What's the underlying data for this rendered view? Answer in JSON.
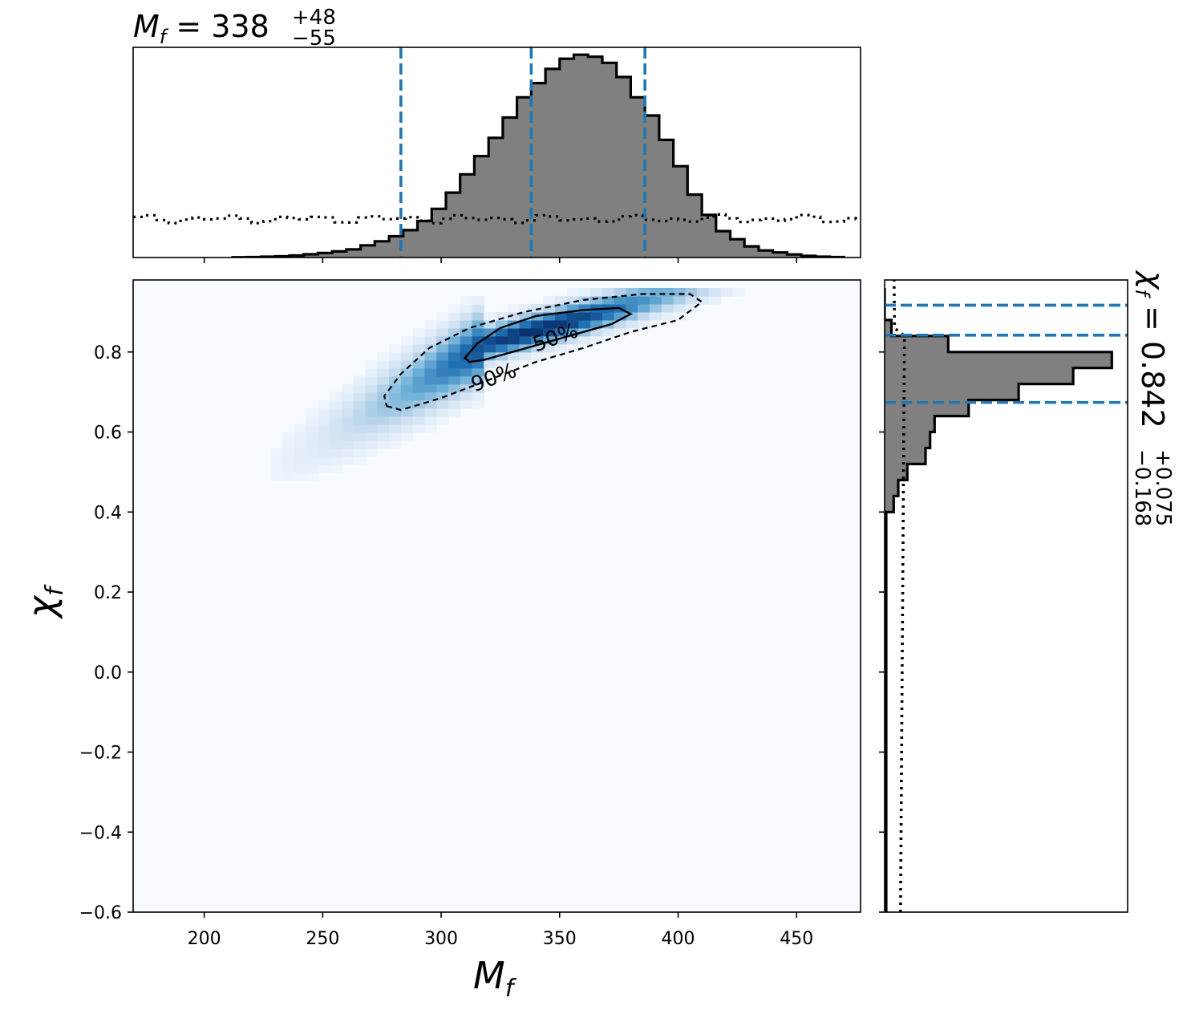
{
  "chart_data": {
    "type": "corner",
    "top_title": {
      "name": "M",
      "sub": "f",
      "median": "338",
      "plus": "+48",
      "minus": "−55"
    },
    "right_title": {
      "name": "χ",
      "sub": "f",
      "median": "0.842",
      "plus": "+0.075",
      "minus": "−0.168"
    },
    "xlabel": {
      "name": "M",
      "sub": "f"
    },
    "ylabel": {
      "name": "χ",
      "sub": "f"
    },
    "xlim": [
      170,
      477
    ],
    "ylim": [
      -0.6,
      0.98
    ],
    "xticks": [
      200,
      250,
      300,
      350,
      400,
      450
    ],
    "xtick_labels": [
      "200",
      "250",
      "300",
      "350",
      "400",
      "450"
    ],
    "yticks": [
      -0.6,
      -0.4,
      -0.2,
      0.0,
      0.2,
      0.4,
      0.6,
      0.8
    ],
    "ytick_labels": [
      "−0.6",
      "−0.4",
      "−0.2",
      "0.0",
      "0.2",
      "0.4",
      "0.6",
      "0.8"
    ],
    "mf_histogram": {
      "bin_start": 212,
      "bin_width": 6,
      "density": [
        0.001,
        0.002,
        0.004,
        0.006,
        0.01,
        0.016,
        0.022,
        0.03,
        0.04,
        0.06,
        0.08,
        0.105,
        0.135,
        0.18,
        0.24,
        0.32,
        0.41,
        0.5,
        0.59,
        0.69,
        0.79,
        0.86,
        0.93,
        0.98,
        1.0,
        0.99,
        0.96,
        0.89,
        0.79,
        0.7,
        0.58,
        0.45,
        0.31,
        0.21,
        0.13,
        0.09,
        0.055,
        0.035,
        0.025,
        0.015,
        0.008,
        0.004,
        0.002
      ],
      "quantiles": [
        283,
        338,
        386
      ],
      "prior_level": 0.19
    },
    "chi_histogram": {
      "bin_start": 0.4,
      "bin_width": 0.04,
      "density": [
        0.04,
        0.06,
        0.1,
        0.18,
        0.2,
        0.22,
        0.37,
        0.59,
        0.83,
        1.0,
        0.28,
        0.03,
        0.0,
        0.0
      ],
      "quantiles": [
        0.674,
        0.842,
        0.917
      ],
      "prior_level": 0.07
    },
    "contours": [
      {
        "label": "50%",
        "style": "solid",
        "points": [
          [
            310,
            0.785
          ],
          [
            312,
            0.775
          ],
          [
            318,
            0.78
          ],
          [
            330,
            0.8
          ],
          [
            345,
            0.825
          ],
          [
            360,
            0.85
          ],
          [
            372,
            0.87
          ],
          [
            380,
            0.895
          ],
          [
            375,
            0.91
          ],
          [
            360,
            0.905
          ],
          [
            340,
            0.89
          ],
          [
            325,
            0.86
          ],
          [
            315,
            0.82
          ]
        ]
      },
      {
        "label": "90%",
        "style": "dashed",
        "points": [
          [
            277,
            0.665
          ],
          [
            283,
            0.655
          ],
          [
            300,
            0.685
          ],
          [
            320,
            0.73
          ],
          [
            340,
            0.775
          ],
          [
            360,
            0.81
          ],
          [
            380,
            0.85
          ],
          [
            400,
            0.88
          ],
          [
            410,
            0.925
          ],
          [
            405,
            0.945
          ],
          [
            385,
            0.945
          ],
          [
            360,
            0.93
          ],
          [
            335,
            0.9
          ],
          [
            312,
            0.86
          ],
          [
            295,
            0.81
          ],
          [
            283,
            0.745
          ],
          [
            276,
            0.69
          ]
        ]
      }
    ],
    "density_peak": {
      "x": 340,
      "y": 0.855
    },
    "colors": {
      "contour": "#000000",
      "quantile": "#1f77b4",
      "hist_fill": "#808080",
      "density_high": "#08306b",
      "density_low": "#f7fbff"
    }
  }
}
